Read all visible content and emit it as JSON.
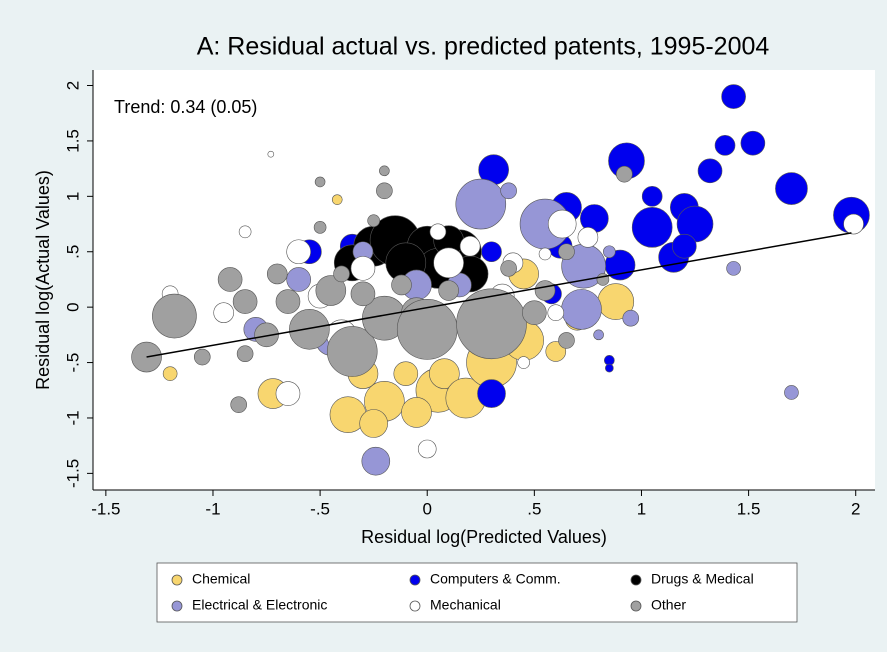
{
  "chart_data": {
    "type": "bubble",
    "title": "A: Residual actual vs. predicted patents, 1995-2004",
    "annotation": "Trend: 0.34 (0.05)",
    "x_label": "Residual log(Predicted Values)",
    "y_label": "Residual log(Actual Values)",
    "xlim": [
      -1.56,
      2.09
    ],
    "ylim": [
      -1.65,
      2.14
    ],
    "xticks": [
      -1.5,
      -1,
      {
        "value": -0.5,
        "label": "-.5"
      },
      0,
      {
        "value": 0.5,
        "label": ".5"
      },
      1,
      1.5,
      2
    ],
    "yticks": [
      2,
      1.5,
      1,
      {
        "value": 0.5,
        "label": ".5"
      },
      0,
      {
        "value": -0.5,
        "label": "-.5"
      },
      -1,
      -1.5
    ],
    "trend": {
      "x": [
        -1.31,
        1.98
      ],
      "y": [
        -0.45,
        0.67
      ],
      "color": "#000000"
    },
    "series": [
      {
        "name": "Chemical",
        "color": "#f8d66f",
        "x": [
          -0.72,
          -0.37,
          -0.2,
          0.05,
          0.08,
          0.18,
          -0.05,
          0.3,
          0.45,
          0.45,
          0.88,
          0.7,
          -1.2,
          -0.42,
          -0.1,
          0.35,
          0.25,
          -0.3,
          0.6,
          -0.25
        ],
        "y": [
          -0.78,
          -0.97,
          -0.85,
          -0.75,
          -0.6,
          -0.82,
          -0.95,
          -0.5,
          -0.3,
          0.3,
          0.05,
          -0.1,
          -0.6,
          0.97,
          -0.6,
          -0.1,
          -0.2,
          -0.6,
          -0.4,
          -1.05
        ],
        "sizes": [
          15,
          18,
          20,
          22,
          15,
          20,
          15,
          25,
          20,
          15,
          18,
          12,
          7,
          5,
          12,
          18,
          20,
          15,
          10,
          14
        ]
      },
      {
        "name": "Computers & Comm.",
        "color": "#0000ee",
        "x": [
          1.43,
          1.52,
          1.39,
          0.93,
          1.32,
          0.31,
          1.7,
          1.98,
          1.05,
          1.2,
          1.05,
          1.25,
          0.65,
          0.78,
          0.55,
          0.9,
          1.15,
          1.2,
          0.62,
          0.75,
          0.3,
          -0.55,
          -0.35,
          0.85,
          0.3,
          0.58,
          0.85
        ],
        "y": [
          1.9,
          1.48,
          1.46,
          1.32,
          1.23,
          1.24,
          1.07,
          0.83,
          1.0,
          0.9,
          0.72,
          0.75,
          0.9,
          0.8,
          0.75,
          0.38,
          0.45,
          0.55,
          0.55,
          0.3,
          0.5,
          0.5,
          0.55,
          -0.48,
          -0.78,
          0.12,
          -0.55
        ],
        "sizes": [
          12,
          12,
          10,
          18,
          12,
          15,
          16,
          18,
          10,
          14,
          20,
          18,
          15,
          14,
          20,
          15,
          15,
          12,
          12,
          12,
          10,
          12,
          12,
          5,
          14,
          10,
          4
        ]
      },
      {
        "name": "Drugs & Medical",
        "color": "#000000",
        "x": [
          -0.25,
          -0.15,
          0.0,
          0.15,
          -0.35,
          0.05,
          0.2,
          -0.1,
          0.1
        ],
        "y": [
          0.55,
          0.6,
          0.55,
          0.5,
          0.4,
          0.35,
          0.3,
          0.4,
          0.6
        ],
        "sizes": [
          20,
          25,
          20,
          22,
          18,
          20,
          18,
          20,
          15
        ]
      },
      {
        "name": "Electrical & Electronic",
        "color": "#9696d6",
        "x": [
          0.25,
          0.55,
          0.73,
          0.72,
          0.95,
          1.43,
          1.7,
          -0.24,
          -0.45,
          -0.6,
          -0.8,
          -0.3,
          0.38,
          0.85,
          0.15,
          -0.05,
          0.8
        ],
        "y": [
          0.93,
          0.75,
          0.37,
          -0.02,
          -0.1,
          0.35,
          -0.77,
          -1.39,
          -0.3,
          0.25,
          -0.2,
          0.5,
          1.05,
          0.5,
          0.2,
          0.2,
          -0.25
        ],
        "sizes": [
          25,
          25,
          22,
          20,
          8,
          7,
          7,
          14,
          15,
          12,
          12,
          10,
          8,
          6,
          12,
          15,
          5
        ]
      },
      {
        "name": "Mechanical",
        "color": "#ffffff",
        "x": [
          -0.73,
          -0.85,
          -1.2,
          -0.65,
          0.0,
          0.63,
          0.75,
          0.2,
          0.05,
          -0.6,
          0.4,
          0.1,
          -0.3,
          -0.5,
          0.55,
          0.6,
          -0.95,
          0.45,
          1.99,
          -0.4,
          0.35
        ],
        "y": [
          1.38,
          0.68,
          0.12,
          -0.78,
          -1.28,
          0.75,
          0.63,
          0.55,
          0.68,
          0.5,
          0.4,
          0.4,
          0.35,
          0.1,
          0.48,
          -0.05,
          -0.05,
          -0.5,
          0.75,
          -0.25,
          0.1
        ],
        "sizes": [
          3,
          6,
          8,
          12,
          9,
          14,
          10,
          10,
          8,
          12,
          10,
          15,
          12,
          12,
          6,
          8,
          10,
          6,
          10,
          15,
          12
        ]
      },
      {
        "name": "Other",
        "color": "#a0a0a0",
        "x": [
          -1.31,
          -1.18,
          -1.05,
          -0.88,
          -0.92,
          -0.85,
          -0.7,
          -0.65,
          -0.55,
          -0.45,
          -0.35,
          -0.2,
          -0.05,
          0.0,
          0.1,
          0.22,
          0.3,
          -0.5,
          -0.2,
          -0.2,
          -0.5,
          -0.25,
          0.38,
          0.55,
          0.5,
          0.65,
          0.92,
          0.82,
          -0.75,
          -0.4,
          -0.3,
          -0.12,
          0.65,
          -0.85
        ],
        "y": [
          -0.45,
          -0.08,
          -0.45,
          -0.88,
          0.25,
          0.05,
          0.3,
          0.05,
          -0.2,
          0.15,
          -0.4,
          -0.1,
          -0.05,
          -0.2,
          0.15,
          -0.05,
          -0.15,
          1.13,
          1.23,
          1.05,
          0.72,
          0.78,
          0.35,
          0.15,
          -0.05,
          -0.3,
          1.2,
          0.25,
          -0.25,
          0.3,
          0.12,
          0.2,
          0.5,
          -0.42
        ],
        "sizes": [
          15,
          22,
          8,
          8,
          12,
          12,
          10,
          12,
          20,
          15,
          25,
          22,
          15,
          30,
          10,
          14,
          35,
          5,
          5,
          8,
          6,
          6,
          8,
          10,
          12,
          8,
          8,
          6,
          12,
          8,
          12,
          10,
          8,
          8
        ]
      }
    ]
  }
}
